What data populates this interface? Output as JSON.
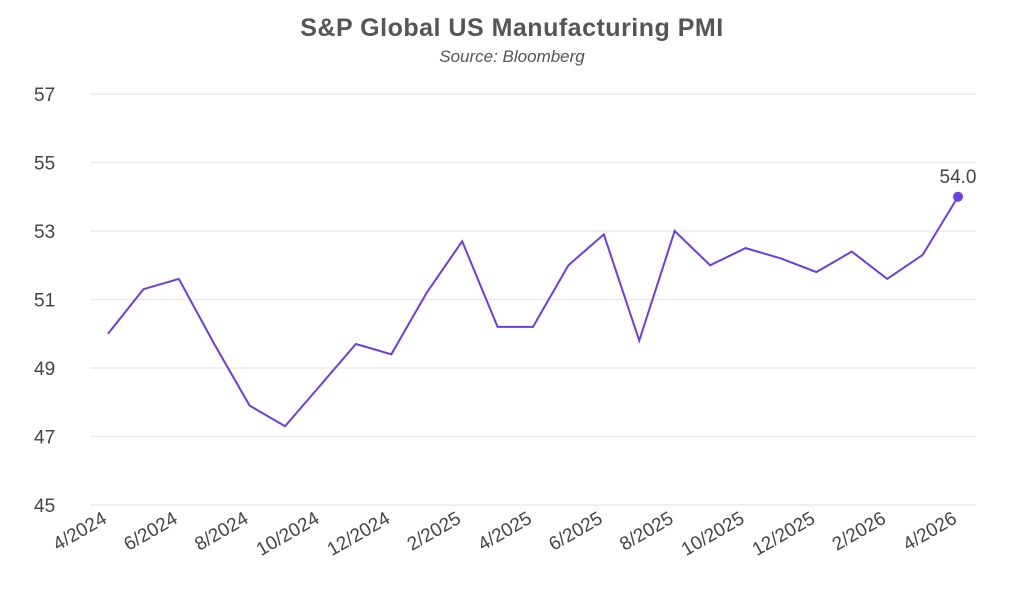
{
  "chart_data": {
    "type": "line",
    "title": "S&P Global US Manufacturing PMI",
    "subtitle": "Source: Bloomberg",
    "xlabel": "",
    "ylabel": "",
    "ylim": [
      45,
      57
    ],
    "yticks": [
      "45",
      "47",
      "49",
      "51",
      "53",
      "55",
      "57"
    ],
    "xticks": [
      "4/2024",
      "6/2024",
      "8/2024",
      "10/2024",
      "12/2024",
      "2/2025",
      "4/2025",
      "6/2025",
      "8/2025",
      "10/2025",
      "12/2025",
      "2/2026",
      "4/2026"
    ],
    "grid": true,
    "line_color": "#6a3de8",
    "x": [
      "4/2024",
      "5/2024",
      "6/2024",
      "7/2024",
      "8/2024",
      "9/2024",
      "10/2024",
      "11/2024",
      "12/2024",
      "1/2025",
      "2/2025",
      "3/2025",
      "4/2025",
      "5/2025",
      "6/2025",
      "7/2025",
      "8/2025",
      "9/2025",
      "10/2025",
      "11/2025",
      "12/2025",
      "1/2026",
      "2/2026",
      "3/2026",
      "4/2026"
    ],
    "values": [
      50.0,
      51.3,
      51.6,
      49.7,
      47.9,
      47.3,
      48.5,
      49.7,
      49.4,
      51.2,
      52.7,
      50.2,
      50.2,
      52.0,
      52.9,
      49.8,
      53.0,
      52.0,
      52.5,
      52.2,
      51.8,
      52.4,
      51.6,
      52.3,
      54.0
    ],
    "last_label": "54.0"
  }
}
